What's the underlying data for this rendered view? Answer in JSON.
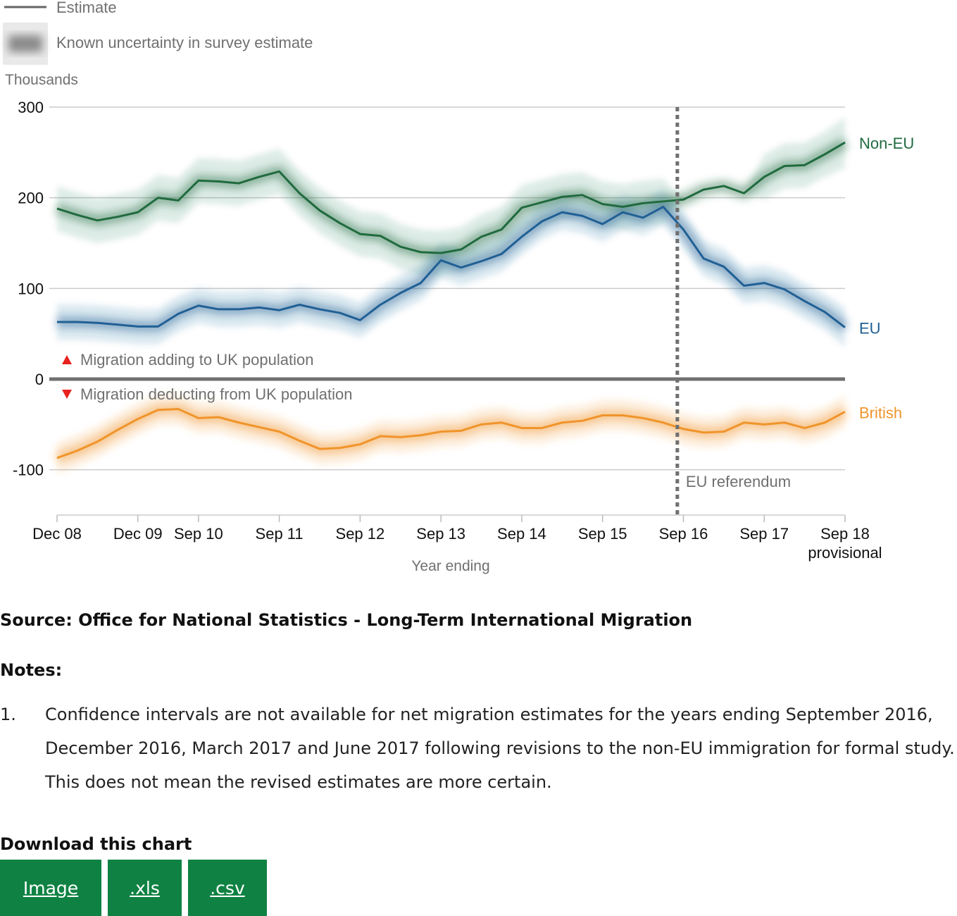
{
  "legend": {
    "estimate_label": "Estimate",
    "uncertainty_label": "Known uncertainty in survey estimate"
  },
  "chart_data": {
    "type": "line",
    "ylabel": "Thousands",
    "xlabel": "Year ending",
    "ylim": [
      -150,
      300
    ],
    "yticks": [
      300,
      200,
      100,
      0,
      -100
    ],
    "x": [
      "Dec 08",
      "Mar 09",
      "Jun 09",
      "Sep 09",
      "Dec 09",
      "Mar 10",
      "Jun 10",
      "Sep 10",
      "Dec 10",
      "Mar 11",
      "Jun 11",
      "Sep 11",
      "Dec 11",
      "Mar 12",
      "Jun 12",
      "Sep 12",
      "Dec 12",
      "Mar 13",
      "Jun 13",
      "Sep 13",
      "Dec 13",
      "Mar 14",
      "Jun 14",
      "Sep 14",
      "Dec 14",
      "Mar 15",
      "Jun 15",
      "Sep 15",
      "Dec 15",
      "Mar 16",
      "Jun 16",
      "Sep 16",
      "Dec 16",
      "Mar 17",
      "Jun 17",
      "Sep 17",
      "Dec 17",
      "Mar 18",
      "Jun 18",
      "Sep 18"
    ],
    "x_tick_labels": [
      {
        "index": 0,
        "label": "Dec 08"
      },
      {
        "index": 4,
        "label": "Dec 09"
      },
      {
        "index": 7,
        "label": "Sep 10"
      },
      {
        "index": 11,
        "label": "Sep 11"
      },
      {
        "index": 15,
        "label": "Sep 12"
      },
      {
        "index": 19,
        "label": "Sep 13"
      },
      {
        "index": 23,
        "label": "Sep 14"
      },
      {
        "index": 27,
        "label": "Sep 15"
      },
      {
        "index": 31,
        "label": "Sep 16"
      },
      {
        "index": 35,
        "label": "Sep 17"
      },
      {
        "index": 39,
        "label": "Sep 18",
        "sublabel": "provisional"
      }
    ],
    "series": [
      {
        "name": "Non-EU",
        "color": "#206b3f",
        "values": [
          188,
          181,
          175,
          179,
          184,
          200,
          197,
          219,
          218,
          216,
          223,
          229,
          205,
          186,
          172,
          160,
          158,
          146,
          140,
          139,
          143,
          157,
          165,
          189,
          195,
          201,
          203,
          193,
          190,
          194,
          196,
          198,
          209,
          213,
          205,
          223,
          235,
          236,
          248,
          261
        ],
        "uncertainty": [
          25,
          25,
          25,
          25,
          25,
          25,
          25,
          25,
          25,
          25,
          25,
          25,
          25,
          25,
          25,
          25,
          25,
          25,
          25,
          25,
          25,
          25,
          25,
          25,
          25,
          25,
          25,
          25,
          25,
          25,
          25,
          0,
          0,
          0,
          0,
          25,
          25,
          25,
          25,
          28
        ]
      },
      {
        "name": "EU",
        "color": "#206095",
        "values": [
          63,
          63,
          62,
          60,
          58,
          58,
          72,
          81,
          77,
          77,
          79,
          76,
          82,
          77,
          73,
          65,
          82,
          95,
          106,
          131,
          123,
          130,
          138,
          157,
          174,
          184,
          180,
          171,
          184,
          178,
          190,
          165,
          133,
          124,
          103,
          106,
          99,
          86,
          74,
          57
        ],
        "uncertainty": [
          20,
          20,
          20,
          20,
          20,
          20,
          20,
          20,
          20,
          20,
          20,
          20,
          20,
          20,
          20,
          20,
          20,
          20,
          20,
          20,
          20,
          20,
          20,
          20,
          20,
          20,
          20,
          20,
          20,
          20,
          20,
          20,
          20,
          20,
          20,
          20,
          20,
          20,
          20,
          22
        ]
      },
      {
        "name": "British",
        "color": "#f0942b",
        "values": [
          -87,
          -79,
          -69,
          -56,
          -44,
          -34,
          -33,
          -43,
          -42,
          -48,
          -53,
          -58,
          -68,
          -77,
          -76,
          -72,
          -63,
          -64,
          -62,
          -58,
          -57,
          -50,
          -48,
          -54,
          -54,
          -48,
          -46,
          -40,
          -40,
          -43,
          -48,
          -55,
          -59,
          -58,
          -48,
          -50,
          -48,
          -54,
          -48,
          -36
        ],
        "uncertainty": [
          18,
          18,
          18,
          18,
          18,
          18,
          18,
          18,
          18,
          18,
          18,
          18,
          18,
          18,
          18,
          18,
          18,
          18,
          18,
          18,
          18,
          18,
          18,
          18,
          18,
          18,
          18,
          18,
          18,
          18,
          18,
          18,
          18,
          18,
          18,
          18,
          18,
          18,
          18,
          18
        ]
      }
    ],
    "annotations": {
      "referendum_index": 30.7,
      "referendum_label": "EU referendum",
      "adding_label": "Migration adding to UK population",
      "deducting_label": "Migration deducting from UK population"
    }
  },
  "source": "Source: Office for National Statistics - Long-Term International Migration",
  "notes": {
    "title": "Notes:",
    "items": [
      {
        "num": "1.",
        "text": "Confidence intervals are not available for net migration estimates for the years ending September 2016, December 2016, March 2017 and June 2017 following revisions to the non-EU immigration for formal study. This does not mean the revised estimates are more certain."
      }
    ]
  },
  "download": {
    "title": "Download this chart",
    "image_label": "Image",
    "xls_label": ".xls",
    "csv_label": ".csv",
    "button_color": "#0f8243"
  }
}
